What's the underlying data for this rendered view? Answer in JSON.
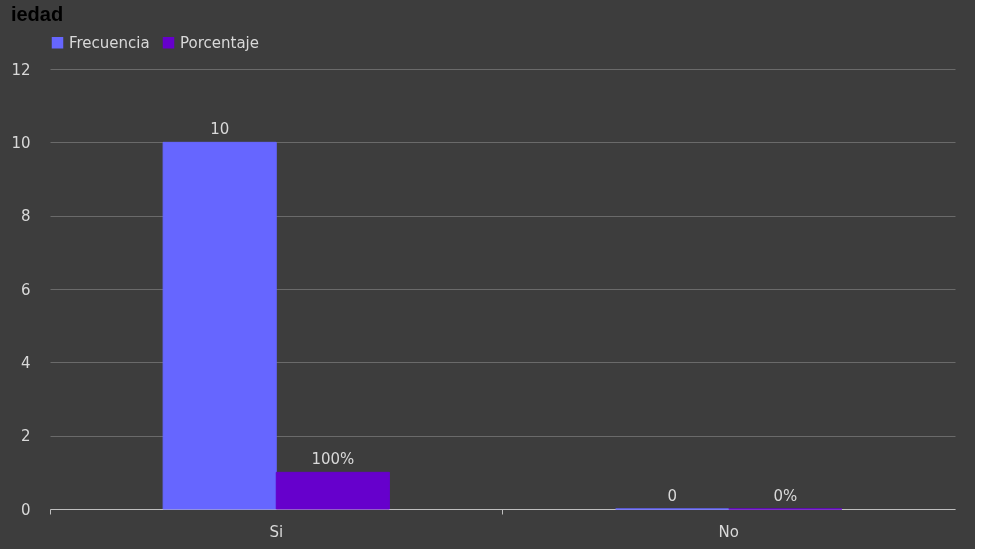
{
  "chart_data": {
    "type": "bar",
    "title": "iedad",
    "categories": [
      "Si",
      "No"
    ],
    "series": [
      {
        "name": "Frecuencia",
        "color": "#6666ff",
        "values": [
          10,
          0
        ],
        "value_labels": [
          "10",
          "0"
        ]
      },
      {
        "name": "Porcentaje",
        "color": "#6600cc",
        "values": [
          1,
          0
        ],
        "value_labels": [
          "100%",
          "0%"
        ]
      }
    ],
    "ylim": [
      0,
      12
    ],
    "yticks": [
      0,
      2,
      4,
      6,
      8,
      10,
      12
    ],
    "grid": "y",
    "legend": "top"
  }
}
